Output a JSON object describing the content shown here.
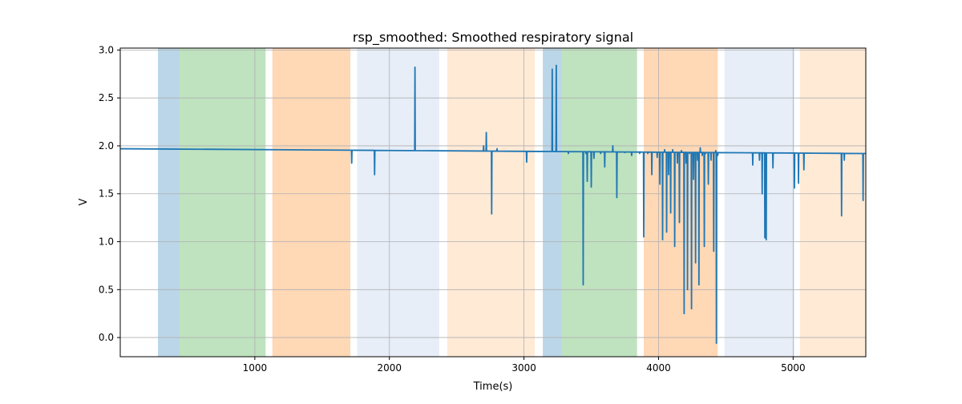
{
  "chart_data": {
    "type": "line",
    "title": "rsp_smoothed: Smoothed respiratory signal",
    "xlabel": "Time(s)",
    "ylabel": "V",
    "xlim": [
      0,
      5540
    ],
    "ylim": [
      -0.2,
      3.02
    ],
    "x_ticks": [
      1000,
      2000,
      3000,
      4000,
      5000
    ],
    "y_ticks": [
      0.0,
      0.5,
      1.0,
      1.5,
      2.0,
      2.5,
      3.0
    ],
    "x_tick_labels": [
      "1000",
      "2000",
      "3000",
      "4000",
      "5000"
    ],
    "y_tick_labels": [
      "0.0",
      "0.5",
      "1.0",
      "1.5",
      "2.0",
      "2.5",
      "3.0"
    ],
    "grid": true,
    "line_color": "#1f77b4",
    "bands": [
      {
        "start": 280,
        "end": 440,
        "color": "#1f77b4",
        "opacity": 0.3
      },
      {
        "start": 440,
        "end": 1080,
        "color": "#2ca02c",
        "opacity": 0.3
      },
      {
        "start": 1130,
        "end": 1710,
        "color": "#ff7f0e",
        "opacity": 0.3
      },
      {
        "start": 1760,
        "end": 2370,
        "color": "#aec7e8",
        "opacity": 0.3
      },
      {
        "start": 2430,
        "end": 3080,
        "color": "#ffbb78",
        "opacity": 0.3
      },
      {
        "start": 3140,
        "end": 3280,
        "color": "#1f77b4",
        "opacity": 0.3
      },
      {
        "start": 3280,
        "end": 3840,
        "color": "#2ca02c",
        "opacity": 0.3
      },
      {
        "start": 3890,
        "end": 4440,
        "color": "#ff7f0e",
        "opacity": 0.3
      },
      {
        "start": 4490,
        "end": 5010,
        "color": "#aec7e8",
        "opacity": 0.3
      },
      {
        "start": 5050,
        "end": 5540,
        "color": "#ffbb78",
        "opacity": 0.3
      }
    ],
    "series": [
      {
        "name": "rsp_smoothed",
        "baseline": [
          [
            0,
            1.97
          ],
          [
            5540,
            1.92
          ]
        ],
        "spikes": [
          [
            1720,
            1.82
          ],
          [
            1890,
            1.7
          ],
          [
            2190,
            2.82
          ],
          [
            2700,
            2.0
          ],
          [
            2720,
            2.14
          ],
          [
            2760,
            1.29
          ],
          [
            2800,
            1.97
          ],
          [
            3020,
            1.83
          ],
          [
            3210,
            2.8
          ],
          [
            3240,
            2.84
          ],
          [
            3330,
            1.92
          ],
          [
            3440,
            0.55
          ],
          [
            3460,
            1.92
          ],
          [
            3470,
            1.63
          ],
          [
            3500,
            1.57
          ],
          [
            3520,
            1.87
          ],
          [
            3570,
            1.92
          ],
          [
            3600,
            1.78
          ],
          [
            3660,
            2.0
          ],
          [
            3690,
            1.46
          ],
          [
            3750,
            1.93
          ],
          [
            3800,
            1.9
          ],
          [
            3860,
            1.92
          ],
          [
            3890,
            1.05
          ],
          [
            3920,
            1.92
          ],
          [
            3950,
            1.7
          ],
          [
            3990,
            1.88
          ],
          [
            4010,
            1.6
          ],
          [
            4030,
            1.02
          ],
          [
            4045,
            1.96
          ],
          [
            4060,
            1.1
          ],
          [
            4075,
            1.7
          ],
          [
            4090,
            1.3
          ],
          [
            4105,
            1.96
          ],
          [
            4120,
            0.95
          ],
          [
            4140,
            1.82
          ],
          [
            4155,
            1.2
          ],
          [
            4170,
            1.95
          ],
          [
            4190,
            0.25
          ],
          [
            4205,
            1.82
          ],
          [
            4215,
            0.5
          ],
          [
            4230,
            1.92
          ],
          [
            4245,
            0.3
          ],
          [
            4260,
            1.65
          ],
          [
            4275,
            0.78
          ],
          [
            4290,
            1.85
          ],
          [
            4300,
            0.55
          ],
          [
            4310,
            1.98
          ],
          [
            4325,
            1.9
          ],
          [
            4340,
            0.95
          ],
          [
            4350,
            1.92
          ],
          [
            4370,
            1.6
          ],
          [
            4390,
            1.85
          ],
          [
            4410,
            0.9
          ],
          [
            4425,
            1.95
          ],
          [
            4430,
            -0.06
          ],
          [
            4440,
            1.9
          ],
          [
            4700,
            1.8
          ],
          [
            4750,
            1.85
          ],
          [
            4770,
            1.5
          ],
          [
            4790,
            1.04
          ],
          [
            4800,
            1.02
          ],
          [
            4850,
            1.77
          ],
          [
            5010,
            1.56
          ],
          [
            5040,
            1.61
          ],
          [
            5080,
            1.75
          ],
          [
            5360,
            1.27
          ],
          [
            5380,
            1.85
          ],
          [
            5520,
            1.43
          ]
        ]
      }
    ]
  }
}
